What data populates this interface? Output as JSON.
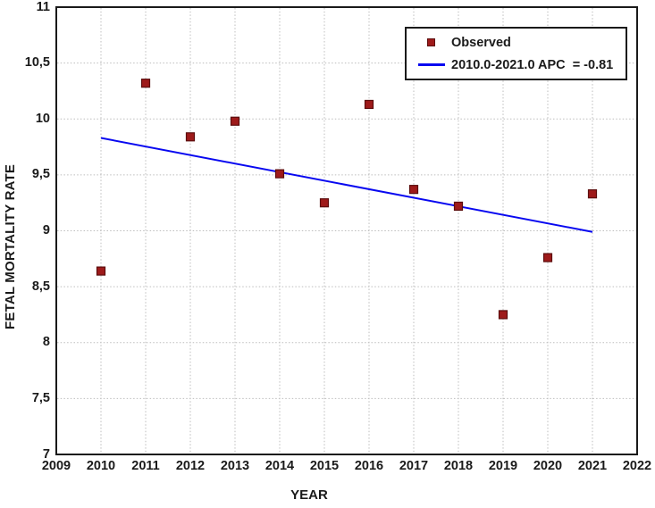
{
  "chart_data": {
    "type": "scatter",
    "title": "",
    "xlabel": "YEAR",
    "ylabel": "FETAL MORTALITY RATE",
    "xlim": [
      2009,
      2022
    ],
    "ylim": [
      7,
      11
    ],
    "grid": true,
    "grid_color": "#bdbdbd",
    "frame_color": "#1a1a1a",
    "legend_position": "top-right",
    "x_ticks": [
      {
        "value": 2009,
        "label": "2009"
      },
      {
        "value": 2010,
        "label": "2010"
      },
      {
        "value": 2011,
        "label": "2011"
      },
      {
        "value": 2012,
        "label": "2012"
      },
      {
        "value": 2013,
        "label": "2013"
      },
      {
        "value": 2014,
        "label": "2014"
      },
      {
        "value": 2015,
        "label": "2015"
      },
      {
        "value": 2016,
        "label": "2016"
      },
      {
        "value": 2017,
        "label": "2017"
      },
      {
        "value": 2018,
        "label": "2018"
      },
      {
        "value": 2019,
        "label": "2019"
      },
      {
        "value": 2020,
        "label": "2020"
      },
      {
        "value": 2021,
        "label": "2021"
      },
      {
        "value": 2022,
        "label": "2022"
      }
    ],
    "y_ticks": [
      {
        "value": 11,
        "label": "11"
      },
      {
        "value": 10.5,
        "label": "10,5"
      },
      {
        "value": 10,
        "label": "10"
      },
      {
        "value": 9.5,
        "label": "9,5"
      },
      {
        "value": 9,
        "label": "9"
      },
      {
        "value": 8.5,
        "label": "8,5"
      },
      {
        "value": 8,
        "label": "8"
      },
      {
        "value": 7.5,
        "label": "7,5"
      },
      {
        "value": 7,
        "label": "7"
      }
    ],
    "series": [
      {
        "name": "Observed",
        "type": "scatter",
        "marker": "square",
        "color": "#9e1a1a",
        "border_color": "#5c0d0d",
        "x": [
          2010,
          2011,
          2012,
          2013,
          2014,
          2015,
          2016,
          2017,
          2018,
          2019,
          2020,
          2021
        ],
        "y": [
          8.64,
          10.32,
          9.84,
          9.98,
          9.51,
          9.25,
          10.13,
          9.37,
          9.22,
          8.25,
          8.76,
          9.33
        ]
      },
      {
        "name": "2010.0-2021.0 APC  = -0.81",
        "type": "line",
        "color": "#0808f0",
        "points": [
          [
            2010,
            9.83
          ],
          [
            2021,
            8.99
          ]
        ]
      }
    ]
  }
}
